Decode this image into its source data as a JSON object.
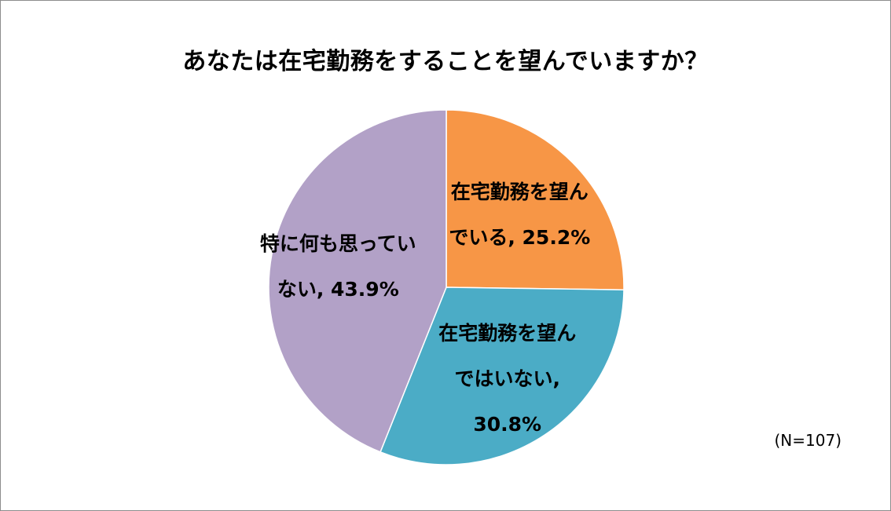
{
  "chart_data": {
    "type": "pie",
    "title": "あなたは在宅勤務をすることを望んでいますか？",
    "categories": [
      "在宅勤務を望んでいる",
      "在宅勤務を望んではいない",
      "特に何も思っていない"
    ],
    "values": [
      25.2,
      30.8,
      43.9
    ],
    "unit": "%",
    "colors": [
      "#f79646",
      "#4bacc6",
      "#b2a1c7"
    ],
    "slice_labels": [
      [
        "在宅勤務を望ん",
        "でいる, 25.2%"
      ],
      [
        "在宅勤務を望ん",
        "ではいない,",
        "30.8%"
      ],
      [
        "特に何も思ってい",
        "ない, 43.9%"
      ]
    ],
    "start_angle_deg": 0,
    "direction": "clockwise",
    "note": "(N=107)"
  }
}
